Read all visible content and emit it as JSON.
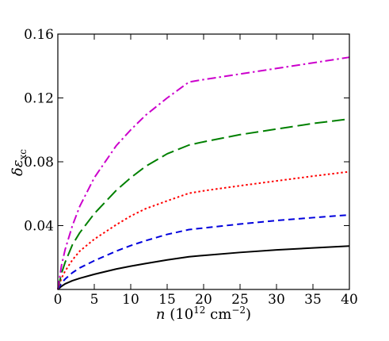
{
  "chart_data": {
    "type": "line",
    "title": "",
    "xlabel": "n (10¹² cm⁻²)",
    "ylabel": "δεxc",
    "xlim": [
      0,
      40
    ],
    "ylim": [
      0,
      0.16
    ],
    "xticks": [
      "0",
      "5",
      "10",
      "15",
      "20",
      "25",
      "30",
      "35",
      "40"
    ],
    "yticks": [
      "0.04",
      "0.08",
      "0.12",
      "0.16"
    ],
    "grid": false,
    "legend": "none",
    "series": [
      {
        "color": "#000000",
        "style": "solid",
        "x": [
          0,
          0.5,
          1,
          2,
          3,
          5,
          8,
          10,
          12,
          15,
          18,
          20,
          25,
          30,
          35,
          40
        ],
        "y": [
          0,
          0.002,
          0.0035,
          0.0055,
          0.007,
          0.0095,
          0.0128,
          0.0146,
          0.0162,
          0.0185,
          0.0205,
          0.0213,
          0.0232,
          0.0248,
          0.026,
          0.0272
        ]
      },
      {
        "color": "#0000dd",
        "style": "dashed",
        "x": [
          0,
          0.5,
          1,
          2,
          3,
          5,
          8,
          10,
          12,
          15,
          18,
          20,
          25,
          30,
          35,
          40
        ],
        "y": [
          0,
          0.004,
          0.0065,
          0.0105,
          0.0135,
          0.018,
          0.024,
          0.0275,
          0.0305,
          0.0345,
          0.0375,
          0.0385,
          0.041,
          0.0432,
          0.045,
          0.0467
        ]
      },
      {
        "color": "#ff0000",
        "style": "dotted",
        "x": [
          0,
          0.5,
          1,
          2,
          3,
          5,
          8,
          10,
          12,
          15,
          18,
          20,
          25,
          30,
          35,
          40
        ],
        "y": [
          0,
          0.007,
          0.0115,
          0.0185,
          0.024,
          0.0315,
          0.0405,
          0.046,
          0.0505,
          0.0555,
          0.0603,
          0.0618,
          0.065,
          0.068,
          0.071,
          0.0738
        ]
      },
      {
        "color": "#008000",
        "style": "long-dash",
        "x": [
          0,
          0.5,
          1,
          2,
          3,
          5,
          8,
          10,
          12,
          15,
          18,
          20,
          25,
          30,
          35,
          40
        ],
        "y": [
          0,
          0.01,
          0.017,
          0.028,
          0.0355,
          0.0475,
          0.062,
          0.07,
          0.077,
          0.085,
          0.0905,
          0.0925,
          0.097,
          0.1005,
          0.104,
          0.1068
        ]
      },
      {
        "color": "#cc00cc",
        "style": "dash-dot",
        "x": [
          0,
          0.5,
          1,
          2,
          3,
          5,
          8,
          10,
          12,
          15,
          18,
          20,
          25,
          30,
          35,
          40
        ],
        "y": [
          0,
          0.015,
          0.025,
          0.04,
          0.052,
          0.07,
          0.09,
          0.1,
          0.109,
          0.12,
          0.13,
          0.1315,
          0.135,
          0.1385,
          0.142,
          0.1455
        ]
      }
    ]
  }
}
